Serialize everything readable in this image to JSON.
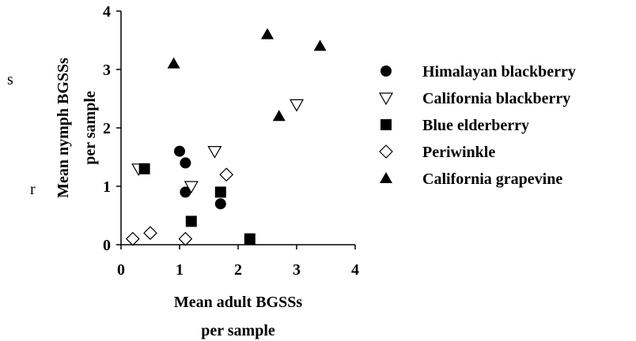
{
  "stray_text": [
    "s",
    "r"
  ],
  "chart_data": {
    "type": "scatter",
    "xlabel_lines": [
      "Mean adult BGSSs",
      "per sample"
    ],
    "ylabel_lines": [
      "Mean nymph BGSSs",
      "per sample"
    ],
    "xlim": [
      0,
      4
    ],
    "ylim": [
      0,
      4
    ],
    "xticks": [
      "0",
      "1",
      "2",
      "3",
      "4"
    ],
    "yticks": [
      "0",
      "1",
      "2",
      "3",
      "4"
    ],
    "grid": false,
    "legend_position": "right",
    "series": [
      {
        "name": "Himalayan blackberry",
        "marker": "circle-filled",
        "x": [
          1.0,
          1.1,
          1.1,
          1.7
        ],
        "y": [
          1.6,
          1.4,
          0.9,
          0.7
        ]
      },
      {
        "name": "California blackberry",
        "marker": "triangle-down-open",
        "x": [
          0.3,
          1.2,
          1.6,
          3.0
        ],
        "y": [
          1.3,
          1.0,
          1.6,
          2.4
        ]
      },
      {
        "name": "Blue elderberry",
        "marker": "square-filled",
        "x": [
          0.4,
          1.2,
          1.7,
          2.2
        ],
        "y": [
          1.3,
          0.4,
          0.9,
          0.1
        ]
      },
      {
        "name": "Periwinkle",
        "marker": "diamond-open",
        "x": [
          0.2,
          0.5,
          1.1,
          1.8
        ],
        "y": [
          0.1,
          0.2,
          0.1,
          1.2
        ]
      },
      {
        "name": "California grapevine",
        "marker": "triangle-up-filled",
        "x": [
          0.9,
          2.5,
          2.7,
          3.4
        ],
        "y": [
          3.1,
          3.6,
          2.2,
          3.4
        ]
      }
    ]
  }
}
